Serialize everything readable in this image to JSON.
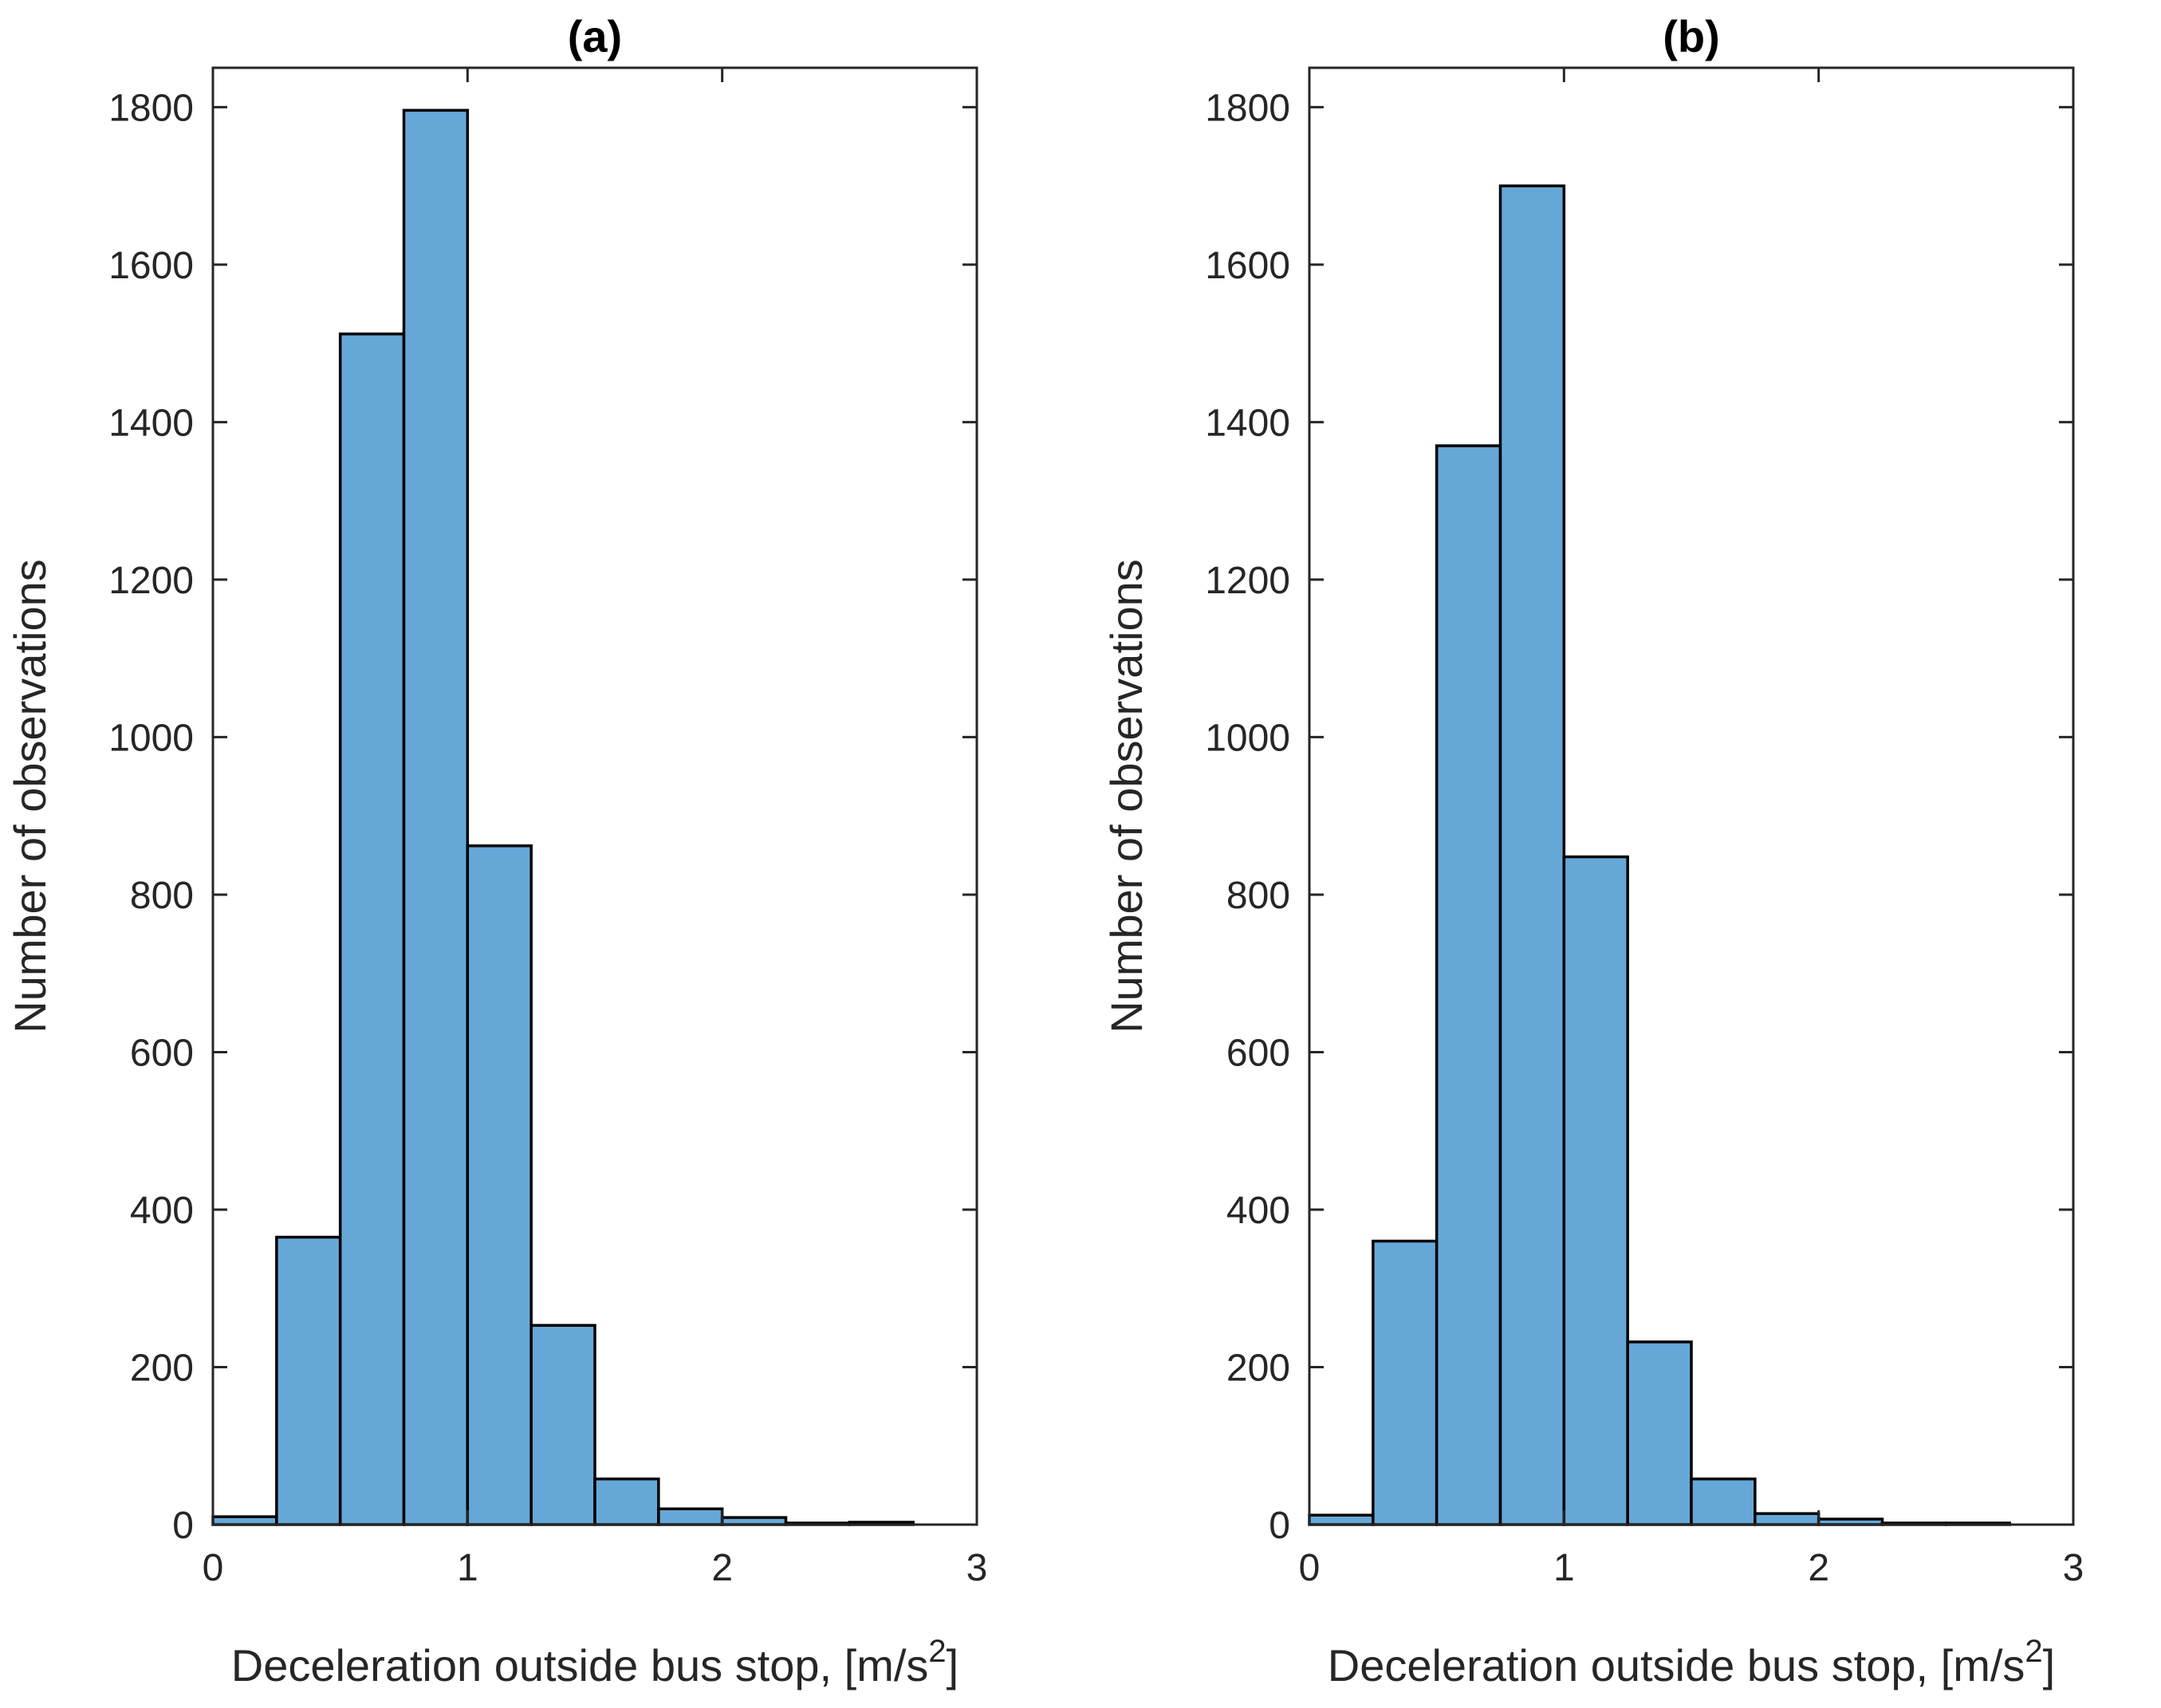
{
  "chart_data": [
    {
      "type": "bar",
      "title": "(a)",
      "xlabel": "Deceleration outside bus stop, [m/s",
      "xlabel_superscript": "2",
      "xlabel_suffix": "]",
      "ylabel": "Number of observations",
      "bin_edges": [
        0,
        0.25,
        0.5,
        0.75,
        1.0,
        1.25,
        1.5,
        1.75,
        2.0,
        2.25,
        2.5,
        2.75
      ],
      "values": [
        10,
        365,
        1512,
        1796,
        862,
        253,
        58,
        20,
        9,
        2,
        3
      ],
      "xlim": [
        0,
        3
      ],
      "ylim": [
        0,
        1850
      ],
      "xticks": [
        0,
        1,
        2,
        3
      ],
      "xtick_labels": [
        "0",
        "1",
        "2",
        "3"
      ],
      "yticks": [
        0,
        200,
        400,
        600,
        800,
        1000,
        1200,
        1400,
        1600,
        1800
      ],
      "ytick_labels": [
        "0",
        "200",
        "400",
        "600",
        "800",
        "1000",
        "1200",
        "1400",
        "1600",
        "1800"
      ],
      "bar_color": "#65a8d7",
      "edge_color": "#000000",
      "grid": false
    },
    {
      "type": "bar",
      "title": "(b)",
      "xlabel": "Deceleration outside bus stop, [m/s",
      "xlabel_superscript": "2",
      "xlabel_suffix": "]",
      "ylabel": "Number of observations",
      "bin_edges": [
        0,
        0.25,
        0.5,
        0.75,
        1.0,
        1.25,
        1.5,
        1.75,
        2.0,
        2.25,
        2.5,
        2.75
      ],
      "values": [
        12,
        360,
        1370,
        1700,
        848,
        232,
        58,
        14,
        7,
        2,
        2
      ],
      "xlim": [
        0,
        3
      ],
      "ylim": [
        0,
        1850
      ],
      "xticks": [
        0,
        1,
        2,
        3
      ],
      "xtick_labels": [
        "0",
        "1",
        "2",
        "3"
      ],
      "yticks": [
        0,
        200,
        400,
        600,
        800,
        1000,
        1200,
        1400,
        1600,
        1800
      ],
      "ytick_labels": [
        "0",
        "200",
        "400",
        "600",
        "800",
        "1000",
        "1200",
        "1400",
        "1600",
        "1800"
      ],
      "bar_color": "#65a8d7",
      "edge_color": "#000000",
      "grid": false
    }
  ]
}
